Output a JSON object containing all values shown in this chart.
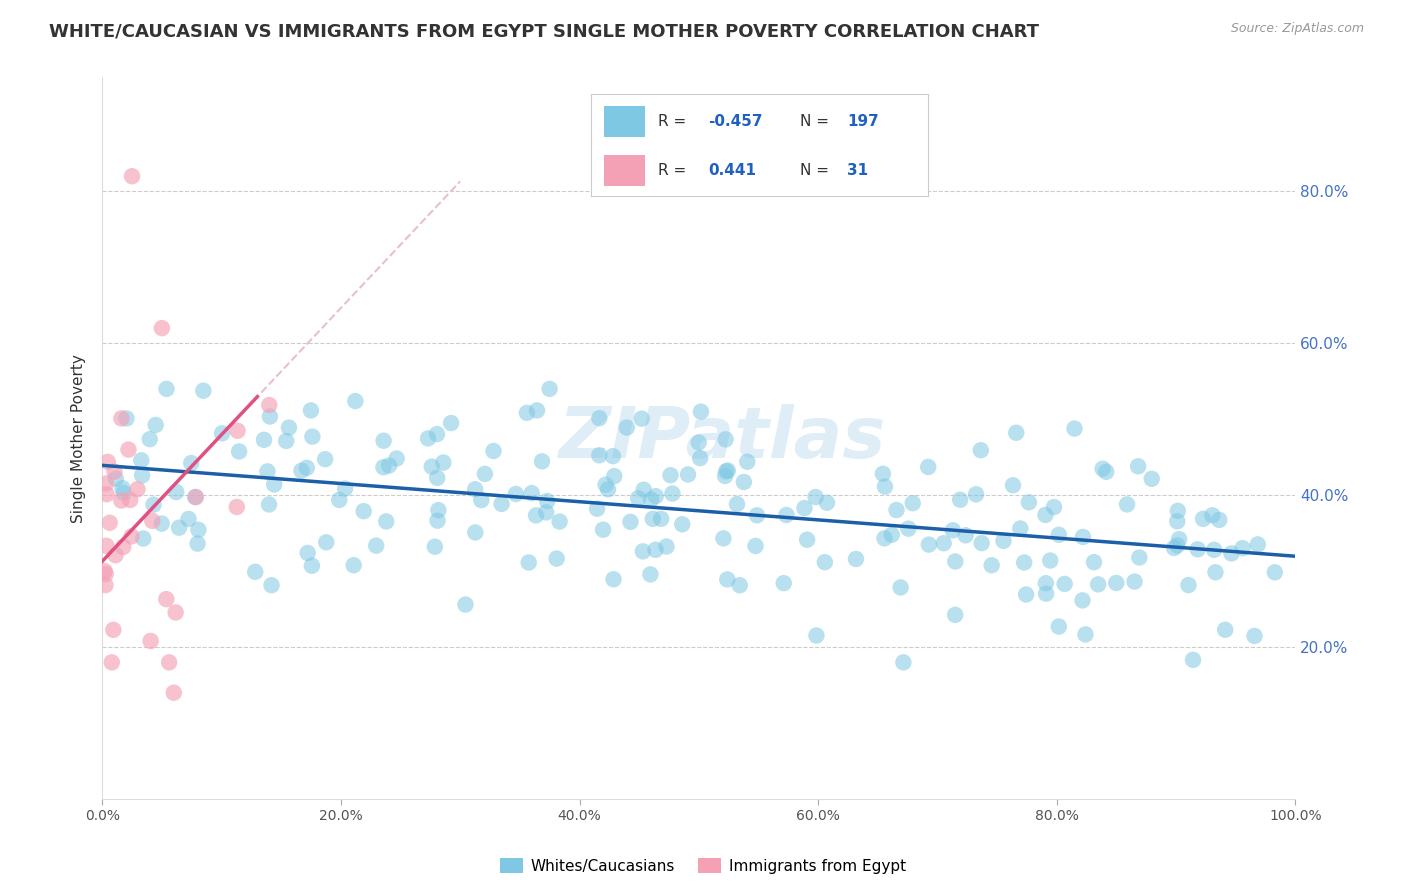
{
  "title": "WHITE/CAUCASIAN VS IMMIGRANTS FROM EGYPT SINGLE MOTHER POVERTY CORRELATION CHART",
  "source_text": "Source: ZipAtlas.com",
  "ylabel": "Single Mother Poverty",
  "xlim": [
    0,
    1
  ],
  "ylim": [
    0.0,
    0.95
  ],
  "x_tick_labels": [
    "0.0%",
    "20.0%",
    "40.0%",
    "60.0%",
    "80.0%",
    "100.0%"
  ],
  "x_tick_positions": [
    0,
    0.2,
    0.4,
    0.6,
    0.8,
    1.0
  ],
  "y_tick_labels": [
    "20.0%",
    "40.0%",
    "60.0%",
    "80.0%"
  ],
  "y_tick_positions": [
    0.2,
    0.4,
    0.6,
    0.8
  ],
  "blue_color": "#7ec8e3",
  "blue_line_color": "#1a5fa8",
  "pink_color": "#f4a0b5",
  "pink_line_color": "#e05080",
  "pink_ext_color": "#e8c0cc",
  "watermark": "ZIPatlas",
  "blue_R": -0.457,
  "blue_N": 197,
  "pink_R": 0.441,
  "pink_N": 31,
  "title_fontsize": 13,
  "axis_label_fontsize": 11,
  "tick_fontsize": 10,
  "legend_R_color": "#2060c0",
  "legend_N_color": "#2060c0"
}
